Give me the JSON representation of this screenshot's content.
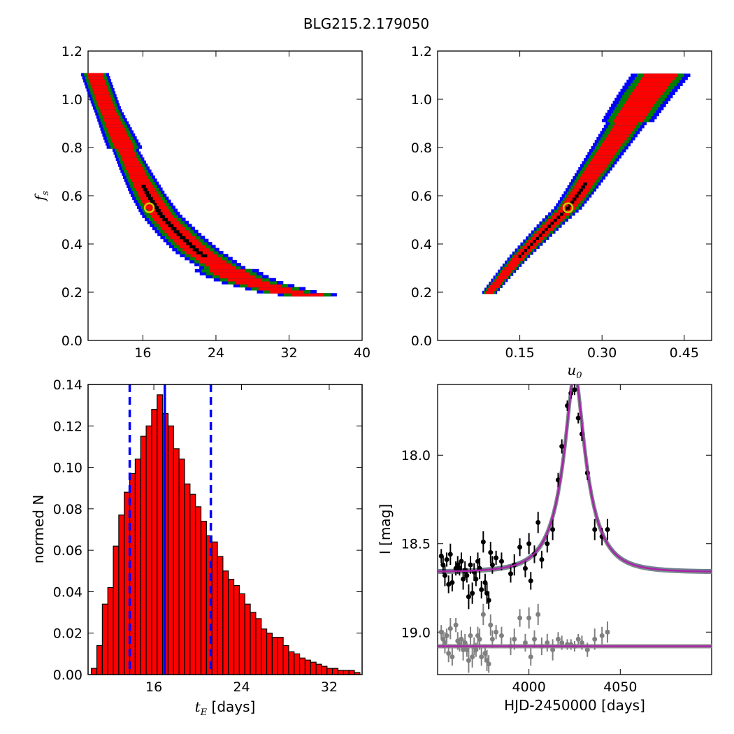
{
  "figure_title": "BLG215.2.179050",
  "chart_data": [
    {
      "type": "heatmap",
      "panel": "fs_vs_tE",
      "xlabel": "",
      "ylabel": "f_s",
      "xlim": [
        10,
        40
      ],
      "ylim": [
        0.0,
        1.2
      ],
      "xticks": [
        "16",
        "24",
        "32",
        "40"
      ],
      "yticks": [
        "0.0",
        "0.2",
        "0.4",
        "0.6",
        "0.8",
        "1.0",
        "1.2"
      ],
      "confidence_colors": [
        "#0000ff",
        "#008000",
        "#ff0000",
        "#000000"
      ],
      "best_fit": {
        "x": 16.7,
        "y": 0.55
      },
      "ridge": [
        [
          10.7,
          1.11
        ],
        [
          12,
          0.97
        ],
        [
          13.5,
          0.84
        ],
        [
          15,
          0.72
        ],
        [
          16.5,
          0.61
        ],
        [
          18,
          0.52
        ],
        [
          20,
          0.44
        ],
        [
          22,
          0.37
        ],
        [
          24,
          0.32
        ],
        [
          26,
          0.27
        ],
        [
          28,
          0.24
        ],
        [
          30,
          0.22
        ],
        [
          32,
          0.2
        ],
        [
          34,
          0.19
        ]
      ]
    },
    {
      "type": "heatmap",
      "panel": "fs_vs_u0",
      "xlabel": "u_0",
      "ylabel": "",
      "xlim": [
        0.0,
        0.5
      ],
      "ylim": [
        0.0,
        1.2
      ],
      "xticks": [
        "0.15",
        "0.30",
        "0.45"
      ],
      "yticks": [
        "0.0",
        "0.2",
        "0.4",
        "0.6",
        "0.8",
        "1.0",
        "1.2"
      ],
      "confidence_colors": [
        "#0000ff",
        "#008000",
        "#ff0000",
        "#000000"
      ],
      "best_fit": {
        "x": 0.238,
        "y": 0.55
      },
      "ridge": [
        [
          0.095,
          0.2
        ],
        [
          0.12,
          0.27
        ],
        [
          0.15,
          0.35
        ],
        [
          0.18,
          0.42
        ],
        [
          0.21,
          0.49
        ],
        [
          0.238,
          0.55
        ],
        [
          0.26,
          0.62
        ],
        [
          0.29,
          0.72
        ],
        [
          0.32,
          0.82
        ],
        [
          0.35,
          0.92
        ],
        [
          0.38,
          1.02
        ],
        [
          0.41,
          1.11
        ]
      ]
    },
    {
      "type": "bar",
      "panel": "tE_histogram",
      "xlabel": "t_E [days]",
      "ylabel": "normed N",
      "xlim": [
        10,
        35
      ],
      "ylim": [
        0.0,
        0.14
      ],
      "xticks": [
        "16",
        "24",
        "32"
      ],
      "yticks": [
        "0.00",
        "0.02",
        "0.04",
        "0.06",
        "0.08",
        "0.10",
        "0.12",
        "0.14"
      ],
      "bin_width": 0.5,
      "bin_start": 10.3,
      "values": [
        0.003,
        0.014,
        0.034,
        0.042,
        0.062,
        0.077,
        0.088,
        0.097,
        0.104,
        0.115,
        0.12,
        0.128,
        0.135,
        0.126,
        0.12,
        0.109,
        0.104,
        0.092,
        0.087,
        0.081,
        0.074,
        0.067,
        0.064,
        0.057,
        0.05,
        0.046,
        0.043,
        0.039,
        0.034,
        0.03,
        0.027,
        0.022,
        0.02,
        0.018,
        0.018,
        0.014,
        0.011,
        0.01,
        0.008,
        0.007,
        0.006,
        0.005,
        0.004,
        0.003,
        0.003,
        0.002,
        0.002,
        0.002,
        0.001,
        0.001,
        0.001,
        0.001,
        0.001,
        0.0005,
        0.0003,
        0.0003,
        0.0002,
        0.0002
      ],
      "median_line": 17.0,
      "interval_lines": [
        13.8,
        21.2
      ],
      "bar_color": "#ff0000",
      "line_color": "#0000ff"
    },
    {
      "type": "scatter",
      "panel": "light_curve",
      "xlabel": "HJD-2450000 [days]",
      "ylabel": "I [mag]",
      "xlim": [
        3950,
        4100
      ],
      "ylim": [
        19.24,
        17.6
      ],
      "xticks": [
        "4000",
        "4050"
      ],
      "yticks": [
        "18.0",
        "18.5",
        "19.0"
      ],
      "model": {
        "t0": 4025,
        "tE": 17.0,
        "u0": 0.238,
        "base_mag": 18.66,
        "fs": 0.55
      },
      "residual_baseline": 19.08,
      "data_color": "#000000",
      "residual_color": "#808080",
      "model_color": "#aa22aa",
      "points": [
        [
          3952,
          18.57,
          0.04
        ],
        [
          3953,
          18.62,
          0.05
        ],
        [
          3954,
          18.68,
          0.06
        ],
        [
          3955,
          18.59,
          0.04
        ],
        [
          3956,
          18.73,
          0.05
        ],
        [
          3957,
          18.56,
          0.06
        ],
        [
          3958,
          18.72,
          0.05
        ],
        [
          3960,
          18.64,
          0.04
        ],
        [
          3961,
          18.62,
          0.05
        ],
        [
          3962,
          18.64,
          0.04
        ],
        [
          3963,
          18.6,
          0.05
        ],
        [
          3964,
          18.7,
          0.06
        ],
        [
          3965,
          18.65,
          0.05
        ],
        [
          3966,
          18.68,
          0.04
        ],
        [
          3967,
          18.8,
          0.07
        ],
        [
          3968,
          18.62,
          0.05
        ],
        [
          3969,
          18.78,
          0.06
        ],
        [
          3970,
          18.66,
          0.05
        ],
        [
          3971,
          18.7,
          0.04
        ],
        [
          3972,
          18.6,
          0.05
        ],
        [
          3973,
          18.64,
          0.06
        ],
        [
          3974,
          18.76,
          0.05
        ],
        [
          3975,
          18.49,
          0.06
        ],
        [
          3976,
          18.72,
          0.05
        ],
        [
          3977,
          18.78,
          0.06
        ],
        [
          3978,
          18.82,
          0.05
        ],
        [
          3979,
          18.55,
          0.06
        ],
        [
          3980,
          18.62,
          0.05
        ],
        [
          3982,
          18.58,
          0.04
        ],
        [
          3985,
          18.6,
          0.05
        ],
        [
          3990,
          18.67,
          0.05
        ],
        [
          3992,
          18.62,
          0.06
        ],
        [
          3995,
          18.52,
          0.05
        ],
        [
          3998,
          18.64,
          0.05
        ],
        [
          4000,
          18.5,
          0.06
        ],
        [
          4001,
          18.71,
          0.05
        ],
        [
          4003,
          18.56,
          0.05
        ],
        [
          4005,
          18.38,
          0.06
        ],
        [
          4007,
          18.59,
          0.05
        ],
        [
          4010,
          18.5,
          0.05
        ],
        [
          4013,
          18.42,
          0.06
        ],
        [
          4016,
          18.14,
          0.04
        ],
        [
          4018,
          17.95,
          0.04
        ],
        [
          4021,
          17.72,
          0.03
        ],
        [
          4023,
          17.65,
          0.03
        ],
        [
          4025,
          17.63,
          0.03
        ],
        [
          4027,
          17.79,
          0.03
        ],
        [
          4029,
          17.88,
          0.04
        ],
        [
          4032,
          18.1,
          0.04
        ],
        [
          4036,
          18.42,
          0.06
        ],
        [
          4040,
          18.46,
          0.05
        ],
        [
          4043,
          18.42,
          0.06
        ]
      ],
      "residuals": [
        [
          3952,
          19.0,
          0.04
        ],
        [
          3953,
          19.04,
          0.05
        ],
        [
          3954,
          19.06,
          0.06
        ],
        [
          3955,
          19.02,
          0.04
        ],
        [
          3956,
          19.12,
          0.05
        ],
        [
          3957,
          18.98,
          0.06
        ],
        [
          3958,
          19.14,
          0.05
        ],
        [
          3960,
          18.96,
          0.04
        ],
        [
          3961,
          19.05,
          0.05
        ],
        [
          3962,
          19.07,
          0.04
        ],
        [
          3963,
          19.04,
          0.05
        ],
        [
          3964,
          19.1,
          0.06
        ],
        [
          3965,
          19.06,
          0.05
        ],
        [
          3966,
          19.1,
          0.04
        ],
        [
          3967,
          19.16,
          0.07
        ],
        [
          3968,
          19.02,
          0.05
        ],
        [
          3969,
          19.14,
          0.06
        ],
        [
          3970,
          19.08,
          0.05
        ],
        [
          3971,
          19.1,
          0.04
        ],
        [
          3972,
          19.02,
          0.05
        ],
        [
          3973,
          19.04,
          0.06
        ],
        [
          3974,
          19.14,
          0.05
        ],
        [
          3975,
          18.9,
          0.06
        ],
        [
          3976,
          19.12,
          0.05
        ],
        [
          3977,
          19.16,
          0.06
        ],
        [
          3978,
          19.18,
          0.05
        ],
        [
          3979,
          18.96,
          0.06
        ],
        [
          3980,
          19.04,
          0.05
        ],
        [
          3982,
          19.0,
          0.04
        ],
        [
          3985,
          19.02,
          0.05
        ],
        [
          3990,
          19.08,
          0.05
        ],
        [
          3992,
          19.04,
          0.06
        ],
        [
          3995,
          18.92,
          0.05
        ],
        [
          3998,
          19.06,
          0.05
        ],
        [
          4000,
          18.92,
          0.06
        ],
        [
          4001,
          19.14,
          0.05
        ],
        [
          4003,
          19.04,
          0.05
        ],
        [
          4005,
          18.9,
          0.06
        ],
        [
          4007,
          19.08,
          0.05
        ],
        [
          4010,
          19.06,
          0.05
        ],
        [
          4013,
          19.1,
          0.06
        ],
        [
          4016,
          19.04,
          0.04
        ],
        [
          4018,
          19.06,
          0.04
        ],
        [
          4021,
          19.07,
          0.03
        ],
        [
          4023,
          19.07,
          0.03
        ],
        [
          4025,
          19.08,
          0.03
        ],
        [
          4027,
          19.04,
          0.03
        ],
        [
          4029,
          19.06,
          0.04
        ],
        [
          4032,
          19.1,
          0.04
        ],
        [
          4036,
          19.04,
          0.06
        ],
        [
          4040,
          19.02,
          0.05
        ],
        [
          4043,
          19.0,
          0.06
        ]
      ]
    }
  ]
}
